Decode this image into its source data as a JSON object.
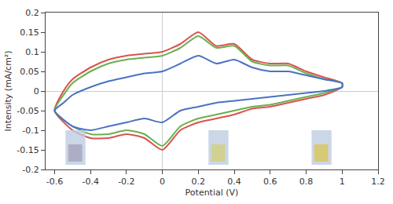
{
  "chart_data": {
    "type": "line",
    "x_label": "Potential (V)",
    "y_label": "Intensity (mA/cm²)",
    "xlim": [
      -0.65,
      1.2
    ],
    "xticks": [
      -0.6,
      -0.4,
      -0.2,
      0,
      0.2,
      0.4,
      0.6,
      0.8,
      1,
      1.2
    ],
    "ylim": [
      -0.2,
      0.2
    ],
    "yticks": [
      -0.2,
      -0.15,
      -0.1,
      -0.05,
      0,
      0.05,
      0.1,
      0.15,
      0.2
    ],
    "grid": false,
    "series": [
      {
        "color": "#d9534f",
        "x": [
          -0.6,
          -0.55,
          -0.5,
          -0.4,
          -0.3,
          -0.2,
          -0.1,
          0,
          0.1,
          0.2,
          0.3,
          0.4,
          0.5,
          0.6,
          0.7,
          0.8,
          0.9,
          1.0,
          1.0,
          0.9,
          0.8,
          0.7,
          0.6,
          0.5,
          0.4,
          0.3,
          0.2,
          0.1,
          0.0,
          -0.1,
          -0.2,
          -0.3,
          -0.4,
          -0.5,
          -0.6
        ],
        "values": [
          -0.05,
          0.0,
          0.03,
          0.06,
          0.08,
          0.09,
          0.095,
          0.1,
          0.12,
          0.15,
          0.115,
          0.12,
          0.08,
          0.07,
          0.07,
          0.05,
          0.035,
          0.02,
          0.01,
          -0.01,
          -0.02,
          -0.03,
          -0.04,
          -0.045,
          -0.06,
          -0.07,
          -0.08,
          -0.1,
          -0.15,
          -0.12,
          -0.11,
          -0.12,
          -0.12,
          -0.1,
          -0.05
        ]
      },
      {
        "color": "#6ab04c",
        "x": [
          -0.6,
          -0.55,
          -0.5,
          -0.4,
          -0.3,
          -0.2,
          -0.1,
          0,
          0.1,
          0.2,
          0.3,
          0.4,
          0.5,
          0.6,
          0.7,
          0.8,
          0.9,
          1.0,
          1.0,
          0.9,
          0.8,
          0.7,
          0.6,
          0.5,
          0.4,
          0.3,
          0.2,
          0.1,
          0.0,
          -0.1,
          -0.2,
          -0.3,
          -0.4,
          -0.5,
          -0.6
        ],
        "values": [
          -0.05,
          -0.01,
          0.02,
          0.05,
          0.07,
          0.08,
          0.085,
          0.09,
          0.11,
          0.14,
          0.11,
          0.115,
          0.075,
          0.065,
          0.065,
          0.045,
          0.03,
          0.02,
          0.01,
          -0.005,
          -0.015,
          -0.025,
          -0.035,
          -0.04,
          -0.05,
          -0.06,
          -0.07,
          -0.09,
          -0.14,
          -0.11,
          -0.1,
          -0.11,
          -0.11,
          -0.09,
          -0.05
        ]
      },
      {
        "color": "#4a72c4",
        "x": [
          -0.6,
          -0.55,
          -0.5,
          -0.4,
          -0.3,
          -0.2,
          -0.1,
          0,
          0.1,
          0.2,
          0.3,
          0.4,
          0.5,
          0.6,
          0.7,
          0.8,
          0.9,
          1.0,
          1.0,
          0.9,
          0.8,
          0.7,
          0.6,
          0.5,
          0.4,
          0.3,
          0.2,
          0.1,
          0.0,
          -0.1,
          -0.2,
          -0.3,
          -0.4,
          -0.5,
          -0.6
        ],
        "values": [
          -0.05,
          -0.03,
          -0.01,
          0.01,
          0.025,
          0.035,
          0.045,
          0.05,
          0.07,
          0.09,
          0.07,
          0.08,
          0.06,
          0.05,
          0.05,
          0.04,
          0.03,
          0.02,
          0.01,
          0.0,
          -0.005,
          -0.01,
          -0.015,
          -0.02,
          -0.025,
          -0.03,
          -0.04,
          -0.05,
          -0.08,
          -0.07,
          -0.08,
          -0.09,
          -0.1,
          -0.09,
          -0.05
        ]
      }
    ]
  }
}
